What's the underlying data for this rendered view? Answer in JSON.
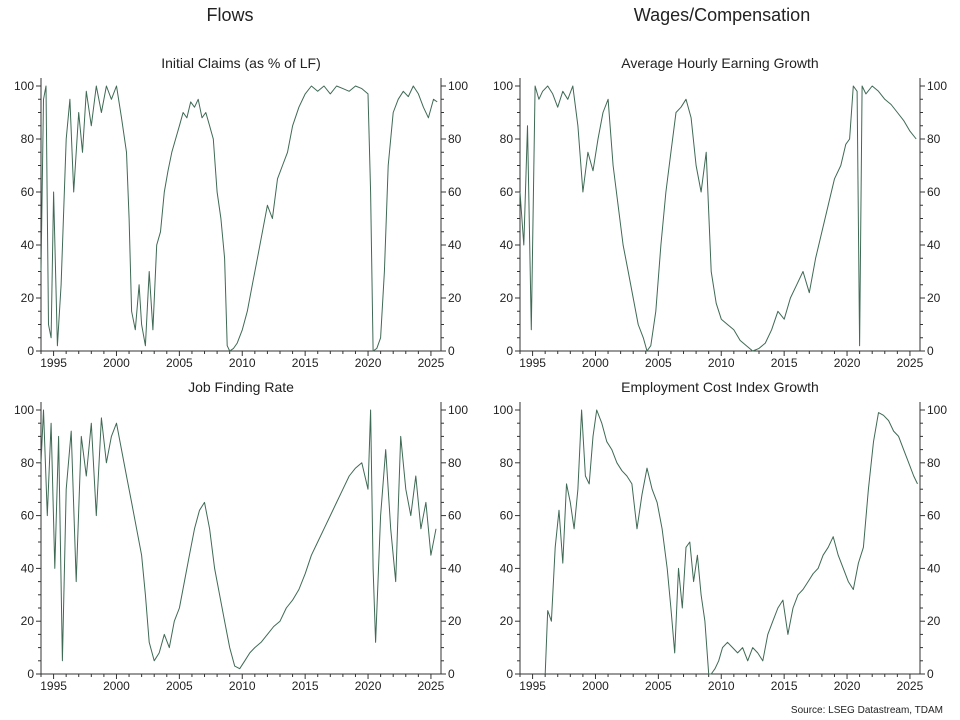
{
  "sections": {
    "left": "Flows",
    "right": "Wages/Compensation"
  },
  "source": "Source: LSEG Datastream, TDAM",
  "colors": {
    "series": "#3f6a55",
    "axis": "#333333"
  },
  "chart_data": [
    {
      "type": "line",
      "title": "Initial Claims (as % of LF)",
      "xlim": [
        1994,
        2025.8
      ],
      "ylim": [
        0,
        100
      ],
      "xticks": [
        1995,
        2000,
        2005,
        2010,
        2015,
        2020,
        2025
      ],
      "yticks": [
        0,
        20,
        40,
        60,
        80,
        100
      ],
      "grid": false,
      "x": [
        1994.0,
        1994.2,
        1994.4,
        1994.6,
        1994.8,
        1995.0,
        1995.3,
        1995.6,
        1996.0,
        1996.3,
        1996.6,
        1997.0,
        1997.3,
        1997.6,
        1998.0,
        1998.4,
        1998.8,
        1999.2,
        1999.6,
        2000.0,
        2000.4,
        2000.8,
        2001.0,
        2001.2,
        2001.5,
        2001.8,
        2002.0,
        2002.3,
        2002.6,
        2002.9,
        2003.2,
        2003.5,
        2003.8,
        2004.1,
        2004.4,
        2004.7,
        2005.0,
        2005.3,
        2005.6,
        2005.9,
        2006.2,
        2006.5,
        2006.8,
        2007.1,
        2007.4,
        2007.7,
        2008.0,
        2008.3,
        2008.6,
        2008.8,
        2009.0,
        2009.3,
        2009.6,
        2010.0,
        2010.4,
        2010.8,
        2011.2,
        2011.6,
        2012.0,
        2012.4,
        2012.8,
        2013.2,
        2013.6,
        2014.0,
        2014.5,
        2015.0,
        2015.5,
        2016.0,
        2016.5,
        2017.0,
        2017.5,
        2018.0,
        2018.5,
        2019.0,
        2019.5,
        2020.0,
        2020.2,
        2020.4,
        2020.7,
        2021.0,
        2021.3,
        2021.6,
        2022.0,
        2022.4,
        2022.8,
        2023.2,
        2023.6,
        2024.0,
        2024.4,
        2024.8,
        2025.2,
        2025.5
      ],
      "y": [
        30,
        95,
        100,
        10,
        5,
        60,
        2,
        25,
        80,
        95,
        60,
        90,
        75,
        98,
        85,
        100,
        90,
        100,
        95,
        100,
        88,
        75,
        50,
        15,
        8,
        25,
        10,
        2,
        30,
        8,
        40,
        45,
        60,
        68,
        75,
        80,
        85,
        90,
        88,
        94,
        92,
        95,
        88,
        90,
        85,
        80,
        60,
        50,
        35,
        2,
        0,
        1,
        3,
        8,
        15,
        25,
        35,
        45,
        55,
        50,
        65,
        70,
        75,
        85,
        92,
        97,
        100,
        98,
        100,
        97,
        100,
        99,
        98,
        100,
        99,
        97,
        60,
        0,
        1,
        5,
        30,
        70,
        90,
        95,
        98,
        96,
        100,
        97,
        92,
        88,
        95,
        94
      ]
    },
    {
      "type": "line",
      "title": "Average Hourly Earning Growth",
      "xlim": [
        1994,
        2025.8
      ],
      "ylim": [
        0,
        100
      ],
      "xticks": [
        1995,
        2000,
        2005,
        2010,
        2015,
        2020,
        2025
      ],
      "yticks": [
        0,
        20,
        40,
        60,
        80,
        100
      ],
      "grid": false,
      "x": [
        1994.0,
        1994.3,
        1994.6,
        1994.9,
        1995.2,
        1995.5,
        1995.8,
        1996.2,
        1996.6,
        1997.0,
        1997.4,
        1997.8,
        1998.2,
        1998.6,
        1999.0,
        1999.4,
        1999.8,
        2000.2,
        2000.6,
        2001.0,
        2001.4,
        2001.8,
        2002.2,
        2002.6,
        2003.0,
        2003.4,
        2003.8,
        2004.1,
        2004.4,
        2004.8,
        2005.2,
        2005.6,
        2006.0,
        2006.4,
        2006.8,
        2007.2,
        2007.6,
        2008.0,
        2008.4,
        2008.8,
        2009.2,
        2009.6,
        2010.0,
        2010.5,
        2011.0,
        2011.5,
        2012.0,
        2012.5,
        2013.0,
        2013.5,
        2014.0,
        2014.5,
        2015.0,
        2015.5,
        2016.0,
        2016.5,
        2017.0,
        2017.5,
        2018.0,
        2018.5,
        2019.0,
        2019.5,
        2019.9,
        2020.2,
        2020.5,
        2020.8,
        2021.0,
        2021.2,
        2021.5,
        2022.0,
        2022.5,
        2023.0,
        2023.5,
        2024.0,
        2024.5,
        2025.0,
        2025.5
      ],
      "y": [
        60,
        40,
        85,
        8,
        100,
        95,
        98,
        100,
        97,
        92,
        98,
        95,
        100,
        85,
        60,
        75,
        68,
        80,
        90,
        95,
        70,
        55,
        40,
        30,
        20,
        10,
        5,
        0,
        2,
        15,
        40,
        60,
        75,
        90,
        92,
        95,
        88,
        70,
        60,
        75,
        30,
        18,
        12,
        10,
        8,
        4,
        2,
        0,
        1,
        3,
        8,
        15,
        12,
        20,
        25,
        30,
        22,
        35,
        45,
        55,
        65,
        70,
        78,
        80,
        100,
        98,
        2,
        100,
        97,
        100,
        98,
        95,
        93,
        90,
        87,
        83,
        80
      ]
    },
    {
      "type": "line",
      "title": "Job Finding Rate",
      "xlim": [
        1994,
        2025.8
      ],
      "ylim": [
        0,
        100
      ],
      "xticks": [
        1995,
        2000,
        2005,
        2010,
        2015,
        2020,
        2025
      ],
      "yticks": [
        0,
        20,
        40,
        60,
        80,
        100
      ],
      "grid": false,
      "x": [
        1994.0,
        1994.2,
        1994.5,
        1994.8,
        1995.1,
        1995.4,
        1995.7,
        1996.0,
        1996.4,
        1996.8,
        1997.2,
        1997.6,
        1998.0,
        1998.4,
        1998.8,
        1999.2,
        1999.6,
        2000.0,
        2000.4,
        2000.8,
        2001.2,
        2001.6,
        2002.0,
        2002.3,
        2002.6,
        2003.0,
        2003.4,
        2003.8,
        2004.2,
        2004.6,
        2005.0,
        2005.4,
        2005.8,
        2006.2,
        2006.6,
        2007.0,
        2007.4,
        2007.8,
        2008.2,
        2008.6,
        2009.0,
        2009.4,
        2009.8,
        2010.2,
        2010.6,
        2011.0,
        2011.5,
        2012.0,
        2012.5,
        2013.0,
        2013.5,
        2014.0,
        2014.5,
        2015.0,
        2015.5,
        2016.0,
        2016.5,
        2017.0,
        2017.5,
        2018.0,
        2018.5,
        2019.0,
        2019.5,
        2020.0,
        2020.2,
        2020.4,
        2020.6,
        2021.0,
        2021.4,
        2021.8,
        2022.2,
        2022.6,
        2023.0,
        2023.4,
        2023.8,
        2024.2,
        2024.6,
        2025.0,
        2025.4
      ],
      "y": [
        80,
        100,
        60,
        95,
        40,
        90,
        5,
        70,
        92,
        35,
        90,
        75,
        95,
        60,
        97,
        80,
        90,
        95,
        85,
        75,
        65,
        55,
        45,
        30,
        12,
        5,
        8,
        15,
        10,
        20,
        25,
        35,
        45,
        55,
        62,
        65,
        55,
        40,
        30,
        20,
        10,
        3,
        2,
        5,
        8,
        10,
        12,
        15,
        18,
        20,
        25,
        28,
        32,
        38,
        45,
        50,
        55,
        60,
        65,
        70,
        75,
        78,
        80,
        70,
        100,
        40,
        12,
        60,
        85,
        55,
        35,
        90,
        70,
        60,
        75,
        55,
        65,
        45,
        55
      ]
    },
    {
      "type": "line",
      "title": "Employment Cost Index Growth",
      "xlim": [
        1994,
        2025.8
      ],
      "ylim": [
        0,
        100
      ],
      "xticks": [
        1995,
        2000,
        2005,
        2010,
        2015,
        2020,
        2025
      ],
      "yticks": [
        0,
        20,
        40,
        60,
        80,
        100
      ],
      "grid": false,
      "x": [
        1996.0,
        1996.2,
        1996.5,
        1996.8,
        1997.1,
        1997.4,
        1997.7,
        1998.0,
        1998.3,
        1998.6,
        1998.9,
        1999.2,
        1999.5,
        1999.8,
        2000.1,
        2000.5,
        2000.9,
        2001.3,
        2001.7,
        2002.1,
        2002.5,
        2002.9,
        2003.3,
        2003.7,
        2004.1,
        2004.5,
        2004.9,
        2005.3,
        2005.7,
        2006.0,
        2006.3,
        2006.6,
        2006.9,
        2007.2,
        2007.5,
        2007.8,
        2008.1,
        2008.4,
        2008.7,
        2009.0,
        2009.2,
        2009.5,
        2009.8,
        2010.1,
        2010.5,
        2010.9,
        2011.3,
        2011.7,
        2012.1,
        2012.5,
        2012.9,
        2013.3,
        2013.7,
        2014.1,
        2014.5,
        2014.9,
        2015.3,
        2015.7,
        2016.1,
        2016.5,
        2016.9,
        2017.3,
        2017.7,
        2018.1,
        2018.5,
        2018.9,
        2019.3,
        2019.7,
        2020.1,
        2020.5,
        2020.9,
        2021.3,
        2021.7,
        2022.1,
        2022.5,
        2022.9,
        2023.3,
        2023.7,
        2024.1,
        2024.5,
        2024.9,
        2025.3,
        2025.6
      ],
      "y": [
        0,
        24,
        20,
        48,
        62,
        42,
        72,
        65,
        55,
        70,
        100,
        75,
        72,
        90,
        100,
        95,
        88,
        85,
        80,
        77,
        75,
        72,
        55,
        68,
        78,
        70,
        65,
        55,
        40,
        25,
        8,
        40,
        25,
        48,
        50,
        35,
        45,
        30,
        20,
        0,
        0,
        2,
        5,
        10,
        12,
        10,
        8,
        10,
        5,
        10,
        8,
        5,
        15,
        20,
        25,
        28,
        15,
        25,
        30,
        32,
        35,
        38,
        40,
        45,
        48,
        52,
        45,
        40,
        35,
        32,
        42,
        48,
        70,
        88,
        99,
        98,
        96,
        92,
        90,
        85,
        80,
        75,
        72
      ]
    }
  ]
}
